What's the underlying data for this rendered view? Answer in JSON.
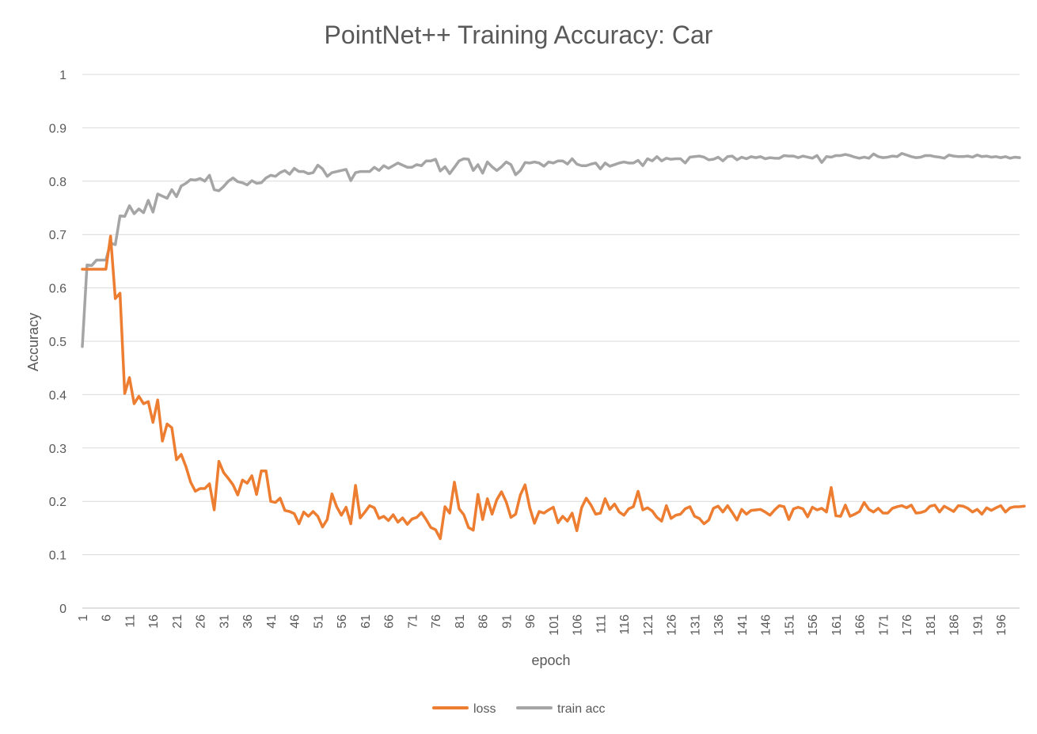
{
  "chart_data": {
    "type": "line",
    "title": "PointNet++ Training Accuracy: Car",
    "xlabel": "epoch",
    "ylabel": "Accuracy",
    "ylim": [
      0,
      1
    ],
    "y_ticks": [
      "0",
      "0.1",
      "0.2",
      "0.3",
      "0.4",
      "0.5",
      "0.6",
      "0.7",
      "0.8",
      "0.9",
      "1"
    ],
    "x_range": [
      1,
      200
    ],
    "x_tick_labels": [
      "1",
      "6",
      "11",
      "16",
      "21",
      "26",
      "31",
      "36",
      "41",
      "46",
      "51",
      "56",
      "61",
      "66",
      "71",
      "76",
      "81",
      "86",
      "91",
      "96",
      "101",
      "106",
      "111",
      "116",
      "121",
      "126",
      "131",
      "136",
      "141",
      "146",
      "151",
      "156",
      "161",
      "166",
      "171",
      "176",
      "181",
      "186",
      "191",
      "196"
    ],
    "grid": true,
    "legend_position": "bottom",
    "series": [
      {
        "name": "loss",
        "color": "#ED7D31",
        "values": [
          0.635,
          0.635,
          0.635,
          0.635,
          0.635,
          0.635,
          0.697,
          0.58,
          0.59,
          0.402,
          0.432,
          0.383,
          0.397,
          0.383,
          0.387,
          0.348,
          0.39,
          0.313,
          0.345,
          0.338,
          0.278,
          0.288,
          0.265,
          0.236,
          0.219,
          0.224,
          0.224,
          0.233,
          0.184,
          0.275,
          0.254,
          0.243,
          0.231,
          0.212,
          0.24,
          0.234,
          0.248,
          0.213,
          0.257,
          0.257,
          0.2,
          0.198,
          0.206,
          0.183,
          0.181,
          0.177,
          0.158,
          0.18,
          0.172,
          0.181,
          0.172,
          0.152,
          0.166,
          0.214,
          0.19,
          0.174,
          0.189,
          0.158,
          0.23,
          0.169,
          0.18,
          0.192,
          0.188,
          0.168,
          0.172,
          0.164,
          0.175,
          0.161,
          0.169,
          0.157,
          0.167,
          0.17,
          0.179,
          0.166,
          0.151,
          0.147,
          0.13,
          0.19,
          0.178,
          0.236,
          0.186,
          0.175,
          0.151,
          0.146,
          0.213,
          0.166,
          0.205,
          0.176,
          0.203,
          0.218,
          0.199,
          0.17,
          0.176,
          0.212,
          0.231,
          0.188,
          0.159,
          0.181,
          0.178,
          0.184,
          0.189,
          0.16,
          0.172,
          0.163,
          0.178,
          0.145,
          0.188,
          0.206,
          0.193,
          0.176,
          0.178,
          0.205,
          0.185,
          0.195,
          0.18,
          0.174,
          0.186,
          0.19,
          0.219,
          0.184,
          0.188,
          0.182,
          0.17,
          0.163,
          0.192,
          0.168,
          0.174,
          0.176,
          0.186,
          0.19,
          0.172,
          0.168,
          0.158,
          0.165,
          0.187,
          0.191,
          0.18,
          0.192,
          0.179,
          0.165,
          0.185,
          0.176,
          0.183,
          0.184,
          0.185,
          0.18,
          0.174,
          0.184,
          0.192,
          0.19,
          0.166,
          0.186,
          0.189,
          0.186,
          0.171,
          0.189,
          0.184,
          0.187,
          0.18,
          0.226,
          0.173,
          0.172,
          0.193,
          0.172,
          0.176,
          0.181,
          0.198,
          0.185,
          0.18,
          0.187,
          0.178,
          0.178,
          0.187,
          0.19,
          0.192,
          0.188,
          0.193,
          0.178,
          0.179,
          0.182,
          0.191,
          0.193,
          0.18,
          0.191,
          0.186,
          0.181,
          0.192,
          0.191,
          0.187,
          0.18,
          0.185,
          0.176,
          0.188,
          0.183,
          0.188,
          0.192,
          0.18,
          0.188,
          0.19,
          0.19,
          0.191
        ]
      },
      {
        "name": "train acc",
        "color": "#A5A5A5",
        "values": [
          0.49,
          0.643,
          0.642,
          0.652,
          0.652,
          0.652,
          0.684,
          0.681,
          0.735,
          0.734,
          0.754,
          0.739,
          0.748,
          0.741,
          0.764,
          0.742,
          0.776,
          0.772,
          0.768,
          0.784,
          0.771,
          0.791,
          0.796,
          0.803,
          0.802,
          0.805,
          0.8,
          0.811,
          0.784,
          0.782,
          0.79,
          0.8,
          0.806,
          0.799,
          0.797,
          0.793,
          0.801,
          0.796,
          0.797,
          0.806,
          0.811,
          0.809,
          0.816,
          0.82,
          0.813,
          0.824,
          0.818,
          0.818,
          0.814,
          0.816,
          0.83,
          0.823,
          0.809,
          0.816,
          0.818,
          0.82,
          0.822,
          0.801,
          0.816,
          0.818,
          0.818,
          0.818,
          0.826,
          0.82,
          0.829,
          0.824,
          0.829,
          0.834,
          0.83,
          0.826,
          0.826,
          0.831,
          0.829,
          0.838,
          0.838,
          0.841,
          0.819,
          0.827,
          0.814,
          0.826,
          0.838,
          0.842,
          0.841,
          0.82,
          0.831,
          0.815,
          0.836,
          0.827,
          0.82,
          0.827,
          0.836,
          0.831,
          0.812,
          0.82,
          0.835,
          0.834,
          0.836,
          0.834,
          0.828,
          0.836,
          0.834,
          0.838,
          0.838,
          0.832,
          0.842,
          0.832,
          0.829,
          0.829,
          0.832,
          0.834,
          0.823,
          0.834,
          0.828,
          0.831,
          0.834,
          0.836,
          0.834,
          0.834,
          0.839,
          0.829,
          0.842,
          0.838,
          0.846,
          0.838,
          0.843,
          0.841,
          0.842,
          0.842,
          0.834,
          0.845,
          0.846,
          0.847,
          0.845,
          0.84,
          0.841,
          0.845,
          0.838,
          0.846,
          0.847,
          0.84,
          0.845,
          0.842,
          0.846,
          0.844,
          0.846,
          0.842,
          0.844,
          0.843,
          0.843,
          0.848,
          0.847,
          0.847,
          0.844,
          0.847,
          0.845,
          0.843,
          0.848,
          0.835,
          0.846,
          0.845,
          0.848,
          0.848,
          0.85,
          0.848,
          0.845,
          0.843,
          0.845,
          0.843,
          0.851,
          0.846,
          0.844,
          0.845,
          0.847,
          0.846,
          0.852,
          0.849,
          0.846,
          0.844,
          0.845,
          0.848,
          0.848,
          0.846,
          0.845,
          0.843,
          0.849,
          0.847,
          0.846,
          0.846,
          0.847,
          0.845,
          0.849,
          0.846,
          0.847,
          0.845,
          0.846,
          0.844,
          0.846,
          0.843,
          0.845,
          0.844
        ]
      }
    ]
  }
}
